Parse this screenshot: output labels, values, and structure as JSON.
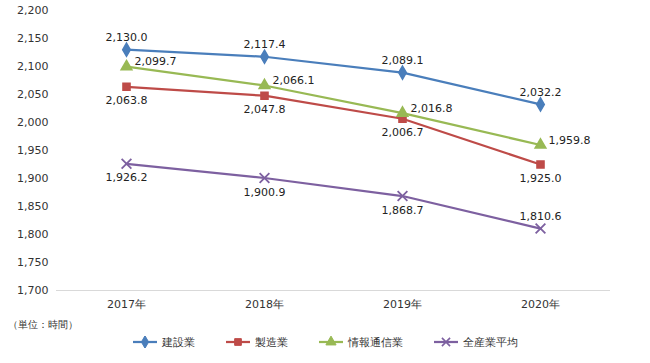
{
  "chart_data": {
    "type": "line",
    "ylabel": "（単位：時間）",
    "categories": [
      "2017年",
      "2018年",
      "2019年",
      "2020年"
    ],
    "ylim": [
      1700,
      2200
    ],
    "yticks": [
      {
        "value": 1700,
        "label": "1,700"
      },
      {
        "value": 1750,
        "label": "1,750"
      },
      {
        "value": 1800,
        "label": "1,800"
      },
      {
        "value": 1850,
        "label": "1,850"
      },
      {
        "value": 1900,
        "label": "1,900"
      },
      {
        "value": 1950,
        "label": "1,950"
      },
      {
        "value": 2000,
        "label": "2,000"
      },
      {
        "value": 2050,
        "label": "2,050"
      },
      {
        "value": 2100,
        "label": "2,100"
      },
      {
        "value": 2150,
        "label": "2,150"
      },
      {
        "value": 2200,
        "label": "2,200"
      }
    ],
    "grid": false,
    "legend": "bottom",
    "data_labels": true,
    "series": [
      {
        "name": "建設業",
        "color": "#4a7ebb",
        "marker": "diamond",
        "values": [
          2130.0,
          2117.4,
          2089.1,
          2032.2
        ],
        "value_labels": [
          "2,130.0",
          "2,117.4",
          "2,089.1",
          "2,032.2"
        ]
      },
      {
        "name": "製造業",
        "color": "#be4b48",
        "marker": "square",
        "values": [
          2063.8,
          2047.8,
          2006.7,
          1925.0
        ],
        "value_labels": [
          "2,063.8",
          "2,047.8",
          "2,006.7",
          "1,925.0"
        ]
      },
      {
        "name": "情報通信業",
        "color": "#98b954",
        "marker": "triangle",
        "values": [
          2099.7,
          2066.1,
          2016.8,
          1959.8
        ],
        "value_labels": [
          "2,099.7",
          "2,066.1",
          "2,016.8",
          "1,959.8"
        ]
      },
      {
        "name": "全産業平均",
        "color": "#7d60a0",
        "marker": "x",
        "values": [
          1926.2,
          1900.9,
          1868.7,
          1810.6
        ],
        "value_labels": [
          "1,926.2",
          "1,900.9",
          "1,868.7",
          "1,810.6"
        ]
      }
    ]
  }
}
